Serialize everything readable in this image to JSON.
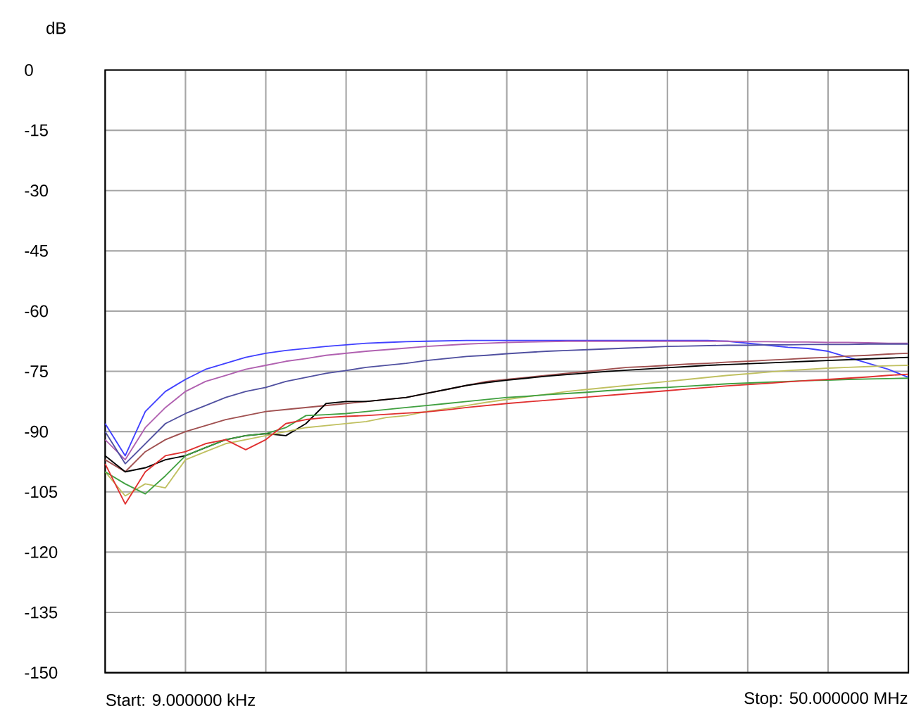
{
  "chart_data": {
    "type": "line",
    "ylabel": "dB",
    "ylim": [
      -150,
      0
    ],
    "yticks": [
      -150,
      -135,
      -120,
      -105,
      -90,
      -75,
      -60,
      -45,
      -30,
      -15,
      0
    ],
    "grid": true,
    "marker": "none",
    "line_style": "solid",
    "annotations": [
      "Start: 9.000000 kHz",
      "Stop: 50.000000 MHz"
    ],
    "categories": [
      null,
      null,
      null,
      null,
      null,
      null,
      null,
      null,
      null,
      null,
      null,
      null,
      null,
      null,
      null,
      null,
      null,
      null,
      null,
      null,
      null,
      null,
      null,
      null,
      null,
      null,
      null,
      null,
      null,
      null,
      null,
      null,
      null,
      null,
      null,
      null,
      null,
      null,
      null,
      null,
      null
    ],
    "series": [
      {
        "color": "#4040ff",
        "values": [
          -88,
          -96,
          -85,
          -80,
          -77,
          -74.5,
          -73,
          -71.5,
          -70.5,
          -69.8,
          -69.3,
          -68.8,
          -68.4,
          -68,
          -67.8,
          -67.6,
          -67.5,
          -67.4,
          -67.3,
          -67.3,
          -67.3,
          -67.3,
          -67.3,
          -67.3,
          -67.3,
          -67.3,
          -67.3,
          -67.3,
          -67.3,
          -67.3,
          -67.3,
          -67.5,
          -68,
          -68.5,
          -69,
          -69.3,
          -70,
          -71.5,
          -73,
          -74.5,
          -76.5
        ]
      },
      {
        "color": "#b060b0",
        "values": [
          -92,
          -97,
          -89,
          -84,
          -80,
          -77.5,
          -76,
          -74.5,
          -73.5,
          -72.5,
          -71.8,
          -71,
          -70.5,
          -70,
          -69.6,
          -69.2,
          -68.8,
          -68.5,
          -68.2,
          -68,
          -67.8,
          -67.7,
          -67.6,
          -67.5,
          -67.5,
          -67.5,
          -67.5,
          -67.5,
          -67.5,
          -67.5,
          -67.5,
          -67.5,
          -67.6,
          -67.6,
          -67.7,
          -67.7,
          -67.8,
          -67.8,
          -67.9,
          -68,
          -68
        ]
      },
      {
        "color": "#5050a0",
        "values": [
          -90,
          -98,
          -93,
          -88,
          -85.5,
          -83.5,
          -81.5,
          -80,
          -79,
          -77.5,
          -76.5,
          -75.5,
          -74.8,
          -74,
          -73.5,
          -73,
          -72.3,
          -71.8,
          -71.3,
          -71,
          -70.6,
          -70.3,
          -70,
          -69.8,
          -69.6,
          -69.4,
          -69.2,
          -69,
          -68.8,
          -68.7,
          -68.6,
          -68.5,
          -68.5,
          -68.4,
          -68.4,
          -68.3,
          -68.3,
          -68.3,
          -68.2,
          -68.2,
          -68.2
        ]
      },
      {
        "color": "#a05050",
        "values": [
          -97,
          -100,
          -95,
          -92,
          -90,
          -88.5,
          -87,
          -86,
          -85,
          -84.5,
          -84,
          -83.5,
          -83,
          -82.5,
          -82,
          -81.5,
          -80.5,
          -79.5,
          -78.5,
          -77.5,
          -77,
          -76.5,
          -76,
          -75.5,
          -75,
          -74.5,
          -74,
          -73.8,
          -73.5,
          -73.2,
          -73,
          -72.7,
          -72.5,
          -72.2,
          -72,
          -71.7,
          -71.5,
          -71.2,
          -71,
          -70.7,
          -70.5
        ]
      },
      {
        "color": "#000000",
        "values": [
          -96,
          -100,
          -99,
          -97,
          -96,
          -94,
          -92,
          -91,
          -90.5,
          -91,
          -88,
          -83,
          -82.5,
          -82.5,
          -82,
          -81.5,
          -80.5,
          -79.5,
          -78.5,
          -77.8,
          -77.2,
          -76.7,
          -76.2,
          -75.8,
          -75.4,
          -75,
          -74.7,
          -74.4,
          -74.1,
          -73.8,
          -73.5,
          -73.3,
          -73.1,
          -72.9,
          -72.7,
          -72.5,
          -72.3,
          -72.1,
          -71.9,
          -71.7,
          -71.5
        ]
      },
      {
        "color": "#c0c060",
        "values": [
          -100,
          -106,
          -103,
          -104,
          -97,
          -95,
          -93,
          -92,
          -91,
          -90,
          -89,
          -88.5,
          -88,
          -87.5,
          -86.5,
          -86,
          -85,
          -84.3,
          -83.5,
          -82.7,
          -82,
          -81.3,
          -80.7,
          -80,
          -79.5,
          -79,
          -78.5,
          -78,
          -77.5,
          -77,
          -76.5,
          -76,
          -75.6,
          -75.2,
          -74.8,
          -74.5,
          -74.2,
          -74,
          -73.8,
          -73.6,
          -73.5
        ]
      },
      {
        "color": "#40a040",
        "values": [
          -100,
          -103,
          -105.5,
          -101,
          -96,
          -94,
          -92,
          -91,
          -90.5,
          -89,
          -86,
          -85.8,
          -85.5,
          -85,
          -84.5,
          -84,
          -83.5,
          -83,
          -82.5,
          -82,
          -81.5,
          -81.2,
          -80.8,
          -80.5,
          -80.2,
          -79.8,
          -79.5,
          -79.2,
          -79,
          -78.7,
          -78.4,
          -78.1,
          -77.9,
          -77.7,
          -77.5,
          -77.3,
          -77.2,
          -77,
          -76.9,
          -76.8,
          -76.7
        ]
      },
      {
        "color": "#e03030",
        "values": [
          -98,
          -108,
          -100,
          -96,
          -95,
          -93,
          -92,
          -94.5,
          -92,
          -88,
          -87,
          -86.5,
          -86.2,
          -86,
          -85.7,
          -85.4,
          -85.1,
          -84.6,
          -84,
          -83.5,
          -83,
          -82.6,
          -82.2,
          -81.8,
          -81.4,
          -81,
          -80.6,
          -80.2,
          -79.8,
          -79.4,
          -79,
          -78.6,
          -78.3,
          -78,
          -77.6,
          -77.3,
          -77,
          -76.7,
          -76.4,
          -76,
          -75.7
        ]
      }
    ]
  }
}
